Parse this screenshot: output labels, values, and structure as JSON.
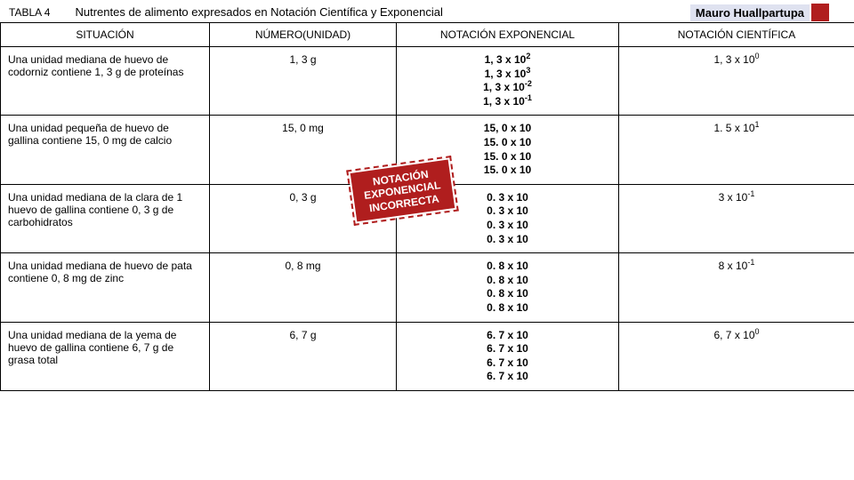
{
  "header": {
    "table_label": "TABLA 4",
    "title": "Nutrentes de alimento expresados en Notación Científica y Exponencial",
    "author": "Mauro Huallpartupa"
  },
  "columns": {
    "c1": "SITUACIÓN",
    "c2": "NÚMERO(UNIDAD)",
    "c3": "NOTACIÓN EXPONENCIAL",
    "c4": "NOTACIÓN CIENTÍFICA"
  },
  "rows": [
    {
      "situacion": "Una unidad mediana de huevo de codorniz contiene 1, 3 g de proteínas",
      "numero": "1, 3 g",
      "exp": [
        "1, 3 x 10<sup>2</sup>",
        "1, 3 x 10<sup>3</sup>",
        "1, 3 x 10<sup>-2</sup>",
        "1, 3 x 10<sup>-1</sup>"
      ],
      "cient": "1, 3 x 10<sup>0</sup>"
    },
    {
      "situacion": "Una unidad pequeña de huevo de gallina contiene 15, 0 mg de calcio",
      "numero": "15, 0 mg",
      "exp": [
        "15, 0 x 10",
        "15. 0 x 10",
        "15. 0 x 10",
        "15. 0 x 10"
      ],
      "cient": "1. 5 x 10<sup>1</sup>"
    },
    {
      "situacion": "Una unidad mediana de la clara de 1 huevo de gallina contiene 0, 3 g de carbohidratos",
      "numero": "0, 3 g",
      "exp": [
        "0. 3 x 10",
        "0. 3 x 10",
        "0. 3 x 10",
        "0. 3 x 10"
      ],
      "cient": "3 x 10<sup>-1</sup>"
    },
    {
      "situacion": "Una unidad mediana de huevo de pata contiene 0, 8 mg de zinc",
      "numero": "0, 8 mg",
      "exp": [
        "0. 8 x 10",
        "0. 8 x 10",
        "0. 8 x 10",
        "0. 8 x 10"
      ],
      "cient": "8 x 10<sup>-1</sup>"
    },
    {
      "situacion": "Una unidad mediana de la yema de huevo de gallina contiene 6, 7 g de grasa total",
      "numero": "6, 7 g",
      "exp": [
        "6. 7 x 10",
        "6. 7 x 10",
        "6. 7 x 10",
        "6. 7 x 10"
      ],
      "cient": "6, 7 x 10<sup>0</sup>"
    }
  ],
  "stamp": {
    "l1": "NOTACIÓN",
    "l2": "EXPONENCIAL",
    "l3": "INCORRECTA"
  }
}
